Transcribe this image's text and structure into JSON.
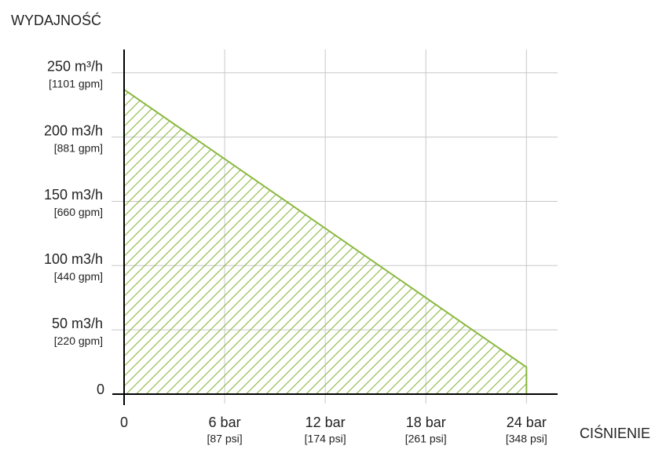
{
  "chart_data": {
    "type": "area",
    "y_label": "WYDAJNOŚĆ",
    "x_label": "CIŚNIENIE",
    "x": [
      0,
      24
    ],
    "series": [
      {
        "color": "#8ab840",
        "values": [
          237,
          21
        ]
      }
    ],
    "xlim": [
      0,
      26
    ],
    "ylim": [
      0,
      270
    ],
    "xticks": [
      0,
      {
        "value": 6,
        "label": "6 bar",
        "sublabel": "[87 psi]"
      },
      {
        "value": 12,
        "label": "12 bar",
        "sublabel": "[174 psi]"
      },
      {
        "value": 18,
        "label": "18 bar",
        "sublabel": "[261 psi]"
      },
      {
        "value": 24,
        "label": "24 bar",
        "sublabel": "[348 psi]"
      }
    ],
    "yticks": [
      0,
      {
        "value": 50,
        "label": "50 m3/h",
        "sublabel": "[220 gpm]"
      },
      {
        "value": 100,
        "label": "100 m3/h",
        "sublabel": "[440 gpm]"
      },
      {
        "value": 150,
        "label": "150 m3/h",
        "sublabel": "[660 gpm]"
      },
      {
        "value": 200,
        "label": "200 m3/h",
        "sublabel": "[881 gpm]"
      },
      {
        "value": 250,
        "label": "250 m³/h",
        "sublabel": "[1101 gpm]"
      }
    ],
    "grid": true,
    "hatch": true
  }
}
